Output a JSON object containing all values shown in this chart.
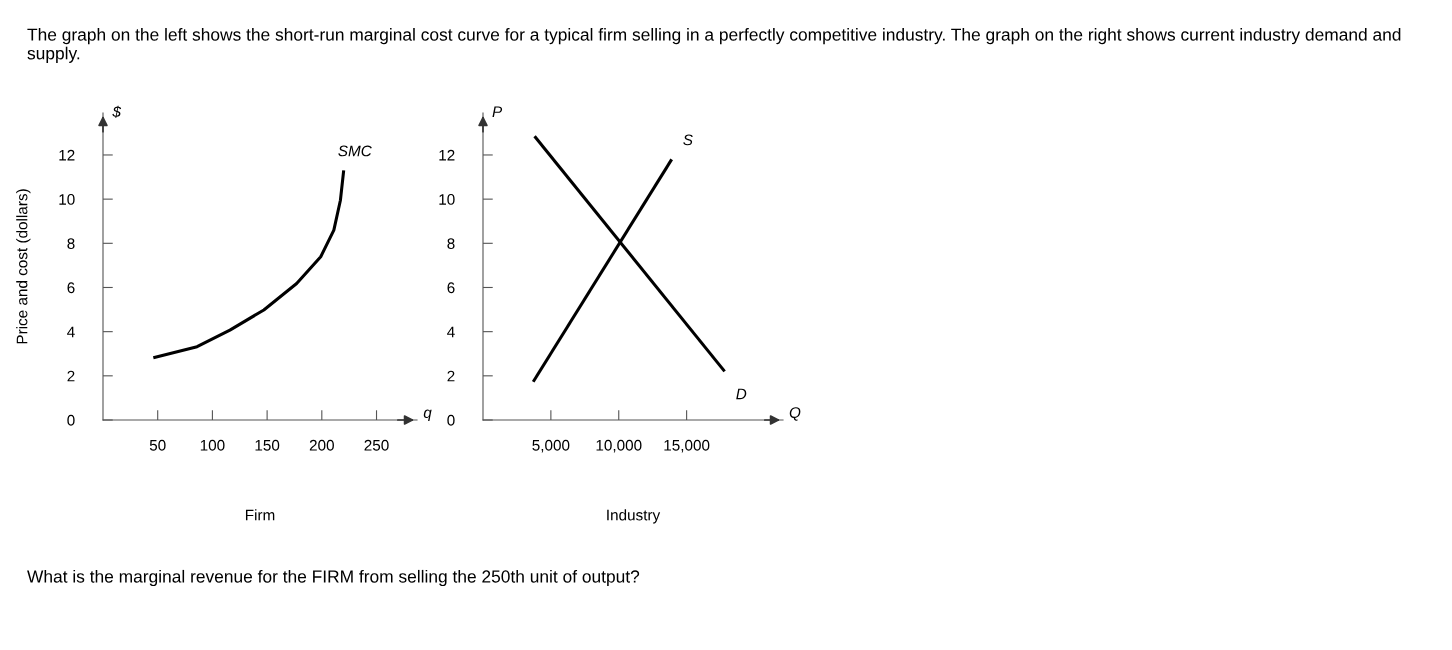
{
  "chart_data": [
    {
      "type": "line",
      "title": "The graph on the left shows the short-run marginal cost curve for a typical firm selling in a perfectly competitive industry. The graph on the right shows current industry demand and supply.",
      "xlabel": "Firm",
      "ylabel": "Price and cost (dollars)",
      "annotations": [
        "$",
        "q",
        "What is the marginal revenue for the FIRM from selling the 250th unit of output?"
      ],
      "series": [
        {
          "name": "SMC",
          "color": "#000000",
          "x": [
            46,
            86,
            116,
            147,
            177,
            199,
            211,
            217,
            220
          ],
          "values": [
            2.82,
            3.32,
            4.07,
            4.98,
            6.18,
            7.39,
            8.6,
            9.95,
            11.3
          ]
        }
      ],
      "xlim": [
        0,
        287
      ],
      "xticks": [
        50,
        100,
        150,
        200,
        250
      ],
      "ylim": [
        0,
        13.9
      ],
      "yticks": [
        0,
        2,
        4,
        6,
        8,
        10,
        12
      ],
      "grid": false,
      "legend": false,
      "marker": "none",
      "line_style": "solid"
    },
    {
      "type": "line",
      "xlabel": "Industry",
      "annotations": [
        "P",
        "Q"
      ],
      "series": [
        {
          "name": "D",
          "color": "#000000",
          "x": [
            3800,
            17800
          ],
          "values": [
            12.85,
            2.2
          ]
        },
        {
          "name": "S",
          "color": "#000000",
          "x": [
            3700,
            13900
          ],
          "values": [
            1.73,
            11.8
          ]
        }
      ],
      "xlim": [
        0,
        22100
      ],
      "xticks": [
        {
          "value": 5000,
          "label": "5,000"
        },
        {
          "value": 10000,
          "label": "10,000"
        },
        {
          "value": 15000,
          "label": "15,000"
        }
      ],
      "ylim": [
        0,
        13.9
      ],
      "yticks": [
        0,
        2,
        4,
        6,
        8,
        10,
        12
      ],
      "grid": false,
      "legend": false,
      "marker": "none",
      "line_style": "solid"
    }
  ]
}
